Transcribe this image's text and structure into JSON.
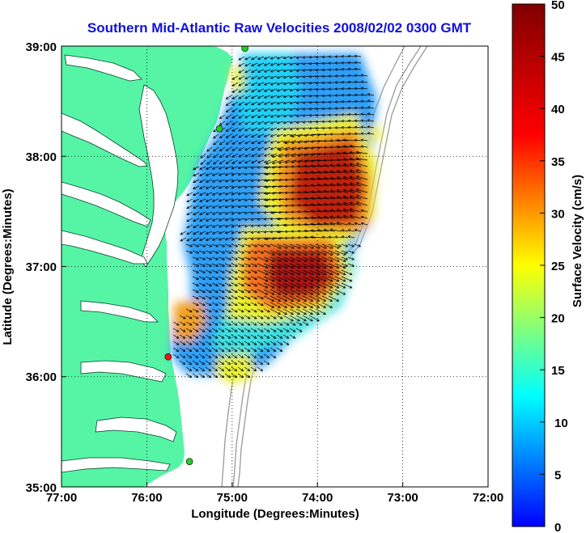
{
  "title": "Southern Mid-Atlantic Raw Velocities 2008/02/02 0300 GMT",
  "xlabel": "Longitude (Degrees:Minutes)",
  "ylabel": "Latitude (Degrees:Minutes)",
  "x_ticks": [
    "77:00",
    "76:00",
    "75:00",
    "74:00",
    "73:00",
    "72:00"
  ],
  "y_ticks": [
    "39:00",
    "38:00",
    "37:00",
    "36:00",
    "35:00"
  ],
  "colorbar": {
    "label": "Surface Velocity (cm/s)",
    "ticks": [
      "50",
      "45",
      "40",
      "35",
      "30",
      "25",
      "20",
      "15",
      "10",
      "5",
      "0"
    ],
    "min": 0,
    "max": 50,
    "colormap": "jet"
  },
  "map": {
    "lon_range": [
      -77,
      -72
    ],
    "lat_range": [
      35,
      39
    ],
    "land_color": "#55f5a5",
    "grid": "dotted",
    "stations": [
      {
        "lon": -74.85,
        "lat": 38.98,
        "color": "#22cc22"
      },
      {
        "lon": -75.15,
        "lat": 38.25,
        "color": "#22cc22"
      },
      {
        "lon": -75.75,
        "lat": 36.18,
        "color": "#ee1111"
      },
      {
        "lon": -75.5,
        "lat": 35.23,
        "color": "#22cc22"
      }
    ]
  }
}
